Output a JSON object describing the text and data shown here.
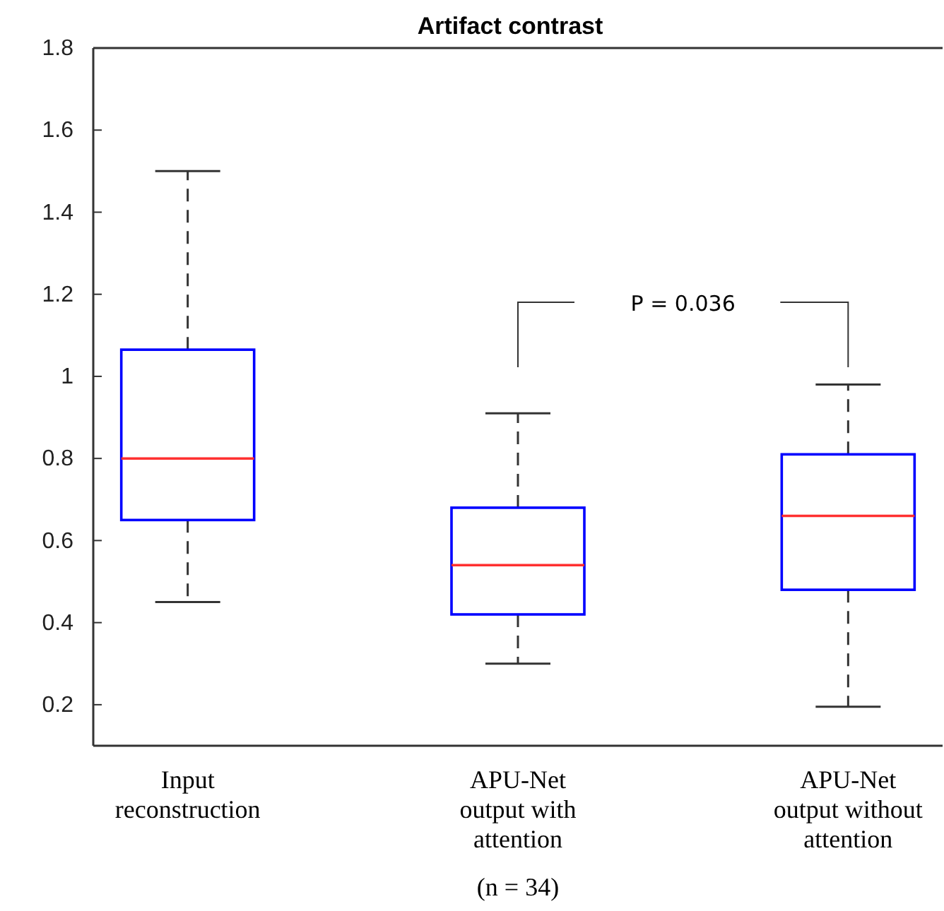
{
  "chart_data": {
    "type": "box",
    "title": "Artifact contrast",
    "categories": [
      "Input reconstruction",
      "APU-Net output with attention",
      "APU-Net output without attention"
    ],
    "series": [
      {
        "color": "#0000ff",
        "boxes": [
          {
            "low": 0.45,
            "q1": 0.65,
            "median": 0.8,
            "q3": 1.065,
            "high": 1.5
          },
          {
            "low": 0.3,
            "q1": 0.42,
            "median": 0.54,
            "q3": 0.68,
            "high": 0.91
          },
          {
            "low": 0.195,
            "q1": 0.48,
            "median": 0.66,
            "q3": 0.81,
            "high": 0.98
          }
        ]
      }
    ],
    "ylim": [
      0.1,
      1.8
    ],
    "yticks": [
      0.2,
      0.4,
      0.6,
      0.8,
      1,
      1.2,
      1.4,
      1.6,
      1.8
    ],
    "annotations": [
      "P = 0.036",
      "(n = 34)"
    ]
  }
}
